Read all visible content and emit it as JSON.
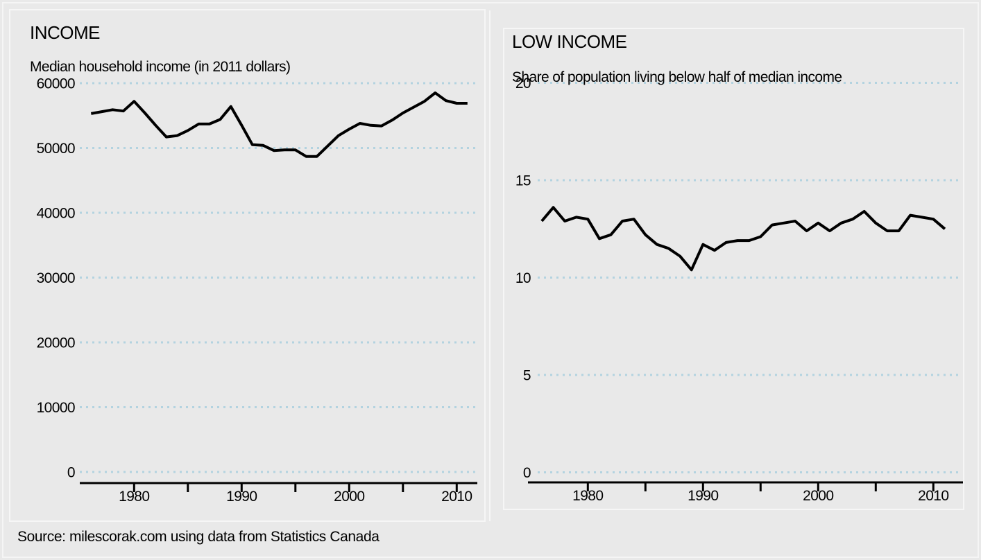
{
  "source_note": "Source: milescorak.com using data from Statistics Canada",
  "colors": {
    "background": "#e9e9e9",
    "frame": "#f6f6f6",
    "gridline": "#b3d3e0",
    "line": "#000000",
    "text": "#000000"
  },
  "chart_data": [
    {
      "type": "line",
      "title": "INCOME",
      "subtitle": "Median household income (in 2011 dollars)",
      "xlabel": "",
      "ylabel": "",
      "ylim": [
        0,
        60000
      ],
      "yticks": [
        0,
        10000,
        20000,
        30000,
        40000,
        50000,
        60000
      ],
      "xticks_labeled": [
        1980,
        1990,
        2000,
        2010
      ],
      "xticks_minor": [
        1985,
        1995,
        2005
      ],
      "grid": true,
      "legend": "none",
      "line_color": "#000000",
      "grid_color": "#b3d3e0",
      "x": [
        1976,
        1977,
        1978,
        1979,
        1980,
        1981,
        1982,
        1983,
        1984,
        1985,
        1986,
        1987,
        1988,
        1989,
        1990,
        1991,
        1992,
        1993,
        1994,
        1995,
        1996,
        1997,
        1998,
        1999,
        2000,
        2001,
        2002,
        2003,
        2004,
        2005,
        2006,
        2007,
        2008,
        2009,
        2010,
        2011
      ],
      "values": [
        55300,
        55600,
        55900,
        55700,
        57200,
        55400,
        53500,
        51700,
        51900,
        52700,
        53700,
        53700,
        54400,
        56400,
        53500,
        50500,
        50400,
        49600,
        49700,
        49700,
        48700,
        48700,
        50300,
        51900,
        52900,
        53800,
        53500,
        53400,
        54300,
        55400,
        56300,
        57200,
        58500,
        57300,
        56900,
        56900
      ]
    },
    {
      "type": "line",
      "title": "LOW INCOME",
      "subtitle": "Share of population living below half of median income",
      "xlabel": "",
      "ylabel": "",
      "ylim": [
        0,
        20
      ],
      "yticks": [
        0,
        5,
        10,
        15,
        20
      ],
      "xticks_labeled": [
        1980,
        1990,
        2000,
        2010
      ],
      "xticks_minor": [
        1985,
        1995,
        2005
      ],
      "grid": true,
      "legend": "none",
      "line_color": "#000000",
      "grid_color": "#b3d3e0",
      "x": [
        1976,
        1977,
        1978,
        1979,
        1980,
        1981,
        1982,
        1983,
        1984,
        1985,
        1986,
        1987,
        1988,
        1989,
        1990,
        1991,
        1992,
        1993,
        1994,
        1995,
        1996,
        1997,
        1998,
        1999,
        2000,
        2001,
        2002,
        2003,
        2004,
        2005,
        2006,
        2007,
        2008,
        2009,
        2010,
        2011
      ],
      "values": [
        12.9,
        13.6,
        12.9,
        13.1,
        13.0,
        12.0,
        12.2,
        12.9,
        13.0,
        12.2,
        11.7,
        11.5,
        11.1,
        10.4,
        11.7,
        11.4,
        11.8,
        11.9,
        11.9,
        12.1,
        12.7,
        12.8,
        12.9,
        12.4,
        12.8,
        12.4,
        12.8,
        13.0,
        13.4,
        12.8,
        12.4,
        12.4,
        13.2,
        13.1,
        13.0,
        12.5
      ]
    }
  ]
}
